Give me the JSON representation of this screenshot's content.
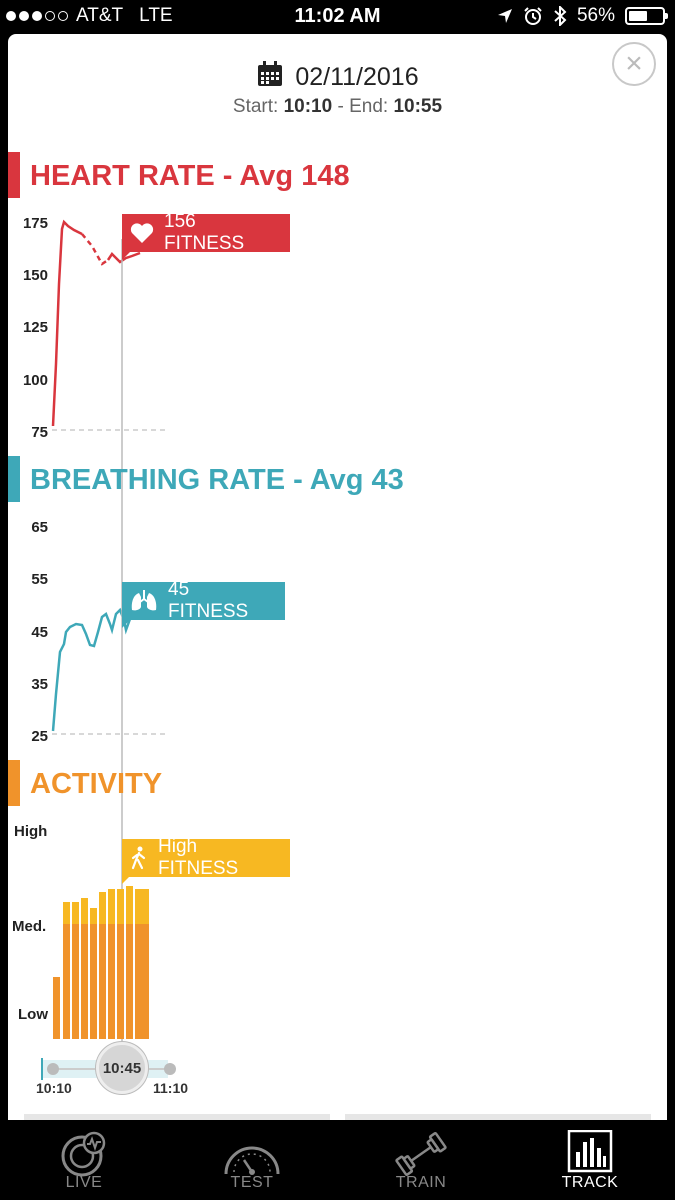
{
  "status_bar": {
    "carrier": "AT&T",
    "network": "LTE",
    "time": "11:02 AM",
    "battery": "56%",
    "battery_level": 0.56
  },
  "header": {
    "date": "02/11/2016",
    "start_label": "Start:",
    "start": "10:10",
    "end_label": "End:",
    "end": "10:55"
  },
  "heart": {
    "title": "HEART RATE - Avg 148",
    "color": "#d9363e",
    "ticks": [
      "175",
      "150",
      "125",
      "100",
      "75"
    ],
    "callout": "156 FITNESS"
  },
  "breathing": {
    "title": "BREATHING RATE - Avg 43",
    "color": "#3ea8b8",
    "ticks": [
      "65",
      "55",
      "45",
      "35",
      "25"
    ],
    "callout": "45 FITNESS"
  },
  "activity": {
    "title": "ACTIVITY",
    "color": "#f0932b",
    "light_color": "#f7b822",
    "levels": [
      "High",
      "Med.",
      "Low"
    ],
    "callout": "High FITNESS"
  },
  "slider": {
    "start": "10:10",
    "current": "10:45",
    "end": "11:10"
  },
  "tabs": [
    {
      "label": "LIVE",
      "icon": "live-icon"
    },
    {
      "label": "TEST",
      "icon": "gauge-icon"
    },
    {
      "label": "TRAIN",
      "icon": "dumbbell-icon"
    },
    {
      "label": "TRACK",
      "icon": "bar-chart-icon",
      "active": true
    }
  ]
}
